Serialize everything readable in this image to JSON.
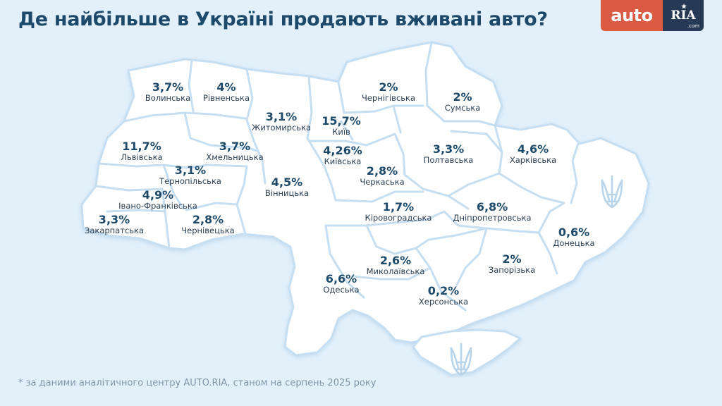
{
  "title": "Де найбільше в Україні продають вживані авто?",
  "logo": {
    "part1": "auto",
    "part2": "RIA",
    "part3": ".com"
  },
  "footnote": "* за даними аналітичного центру AUTO.RIA, станом на серпень 2025 року",
  "colors": {
    "background": "#e3f0fa",
    "land": "#ffffff",
    "border": "#c6def2",
    "title": "#1d4a6b",
    "logo_red": "#db5a42",
    "logo_navy": "#263a55"
  },
  "icons": [
    "trident-icon"
  ],
  "regions": [
    {
      "id": "volynska",
      "pct": "3,7%",
      "name": "Волинська"
    },
    {
      "id": "rivnenska",
      "pct": "4%",
      "name": "Рівненська"
    },
    {
      "id": "zhytomyrska",
      "pct": "3,1%",
      "name": "Житомирська"
    },
    {
      "id": "kyiv",
      "pct": "15,7%",
      "name": "Київ"
    },
    {
      "id": "kyivska",
      "pct": "4,26%",
      "name": "Київська"
    },
    {
      "id": "chernihivska",
      "pct": "2%",
      "name": "Чернігівська"
    },
    {
      "id": "sumska",
      "pct": "2%",
      "name": "Сумська"
    },
    {
      "id": "lvivska",
      "pct": "11,7%",
      "name": "Львівська"
    },
    {
      "id": "khmelnytska",
      "pct": "3,7%",
      "name": "Хмельницька"
    },
    {
      "id": "ternopilska",
      "pct": "3,1%",
      "name": "Тернопільська"
    },
    {
      "id": "ivano-frankivska",
      "pct": "4,9%",
      "name": "Івано-Франківська"
    },
    {
      "id": "zakarpatska",
      "pct": "3,3%",
      "name": "Закарпатська"
    },
    {
      "id": "chernivetska",
      "pct": "2,8%",
      "name": "Чернівецька"
    },
    {
      "id": "vinnytska",
      "pct": "4,5%",
      "name": "Вінницька"
    },
    {
      "id": "cherkaska",
      "pct": "2,8%",
      "name": "Черкаська"
    },
    {
      "id": "poltavska",
      "pct": "3,3%",
      "name": "Полтавська"
    },
    {
      "id": "kharkivska",
      "pct": "4,6%",
      "name": "Харківська"
    },
    {
      "id": "kirovohradska",
      "pct": "1,7%",
      "name": "Кіровоградська"
    },
    {
      "id": "dnipropetrovska",
      "pct": "6,8%",
      "name": "Дніпропетровська"
    },
    {
      "id": "donetska",
      "pct": "0,6%",
      "name": "Донецька"
    },
    {
      "id": "odeska",
      "pct": "6,6%",
      "name": "Одеська"
    },
    {
      "id": "mykolaivska",
      "pct": "2,6%",
      "name": "Миколаївська"
    },
    {
      "id": "zaporizka",
      "pct": "2%",
      "name": "Запорізька"
    },
    {
      "id": "khersonska",
      "pct": "0,2%",
      "name": "Херсонська"
    }
  ]
}
